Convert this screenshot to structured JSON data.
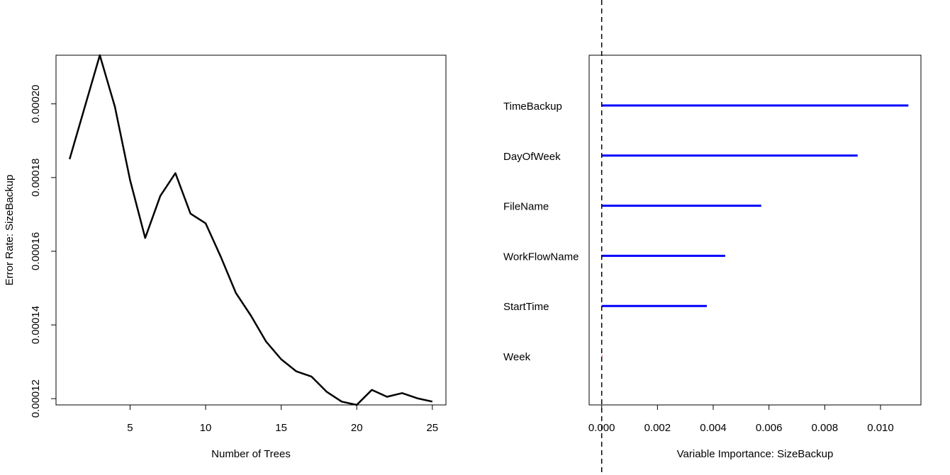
{
  "chart_data": [
    {
      "type": "line",
      "title": "",
      "xlabel": "Number of Trees",
      "ylabel": "Error Rate: SizeBackup",
      "xlim": [
        0.1,
        25.9
      ],
      "ylim": [
        0.0001183,
        0.0002132
      ],
      "x_ticks": [
        5,
        10,
        15,
        20,
        25
      ],
      "x_tick_labels": [
        "5",
        "10",
        "15",
        "20",
        "25"
      ],
      "y_ticks": [
        0.00012,
        0.00014,
        0.00016,
        0.00018,
        0.0002
      ],
      "y_tick_labels": [
        "0.00012",
        "0.00014",
        "0.00016",
        "0.00018",
        "0.00020"
      ],
      "line_color": "#000000",
      "series": [
        {
          "x": [
            1,
            2,
            3,
            4,
            5,
            6,
            7,
            8,
            9,
            10,
            11,
            12,
            13,
            14,
            15,
            16,
            17,
            18,
            19,
            20,
            21,
            22,
            23,
            24,
            25
          ],
          "values": [
            0.000185,
            0.0001991,
            0.0002132,
            0.0001992,
            0.0001793,
            0.0001636,
            0.000175,
            0.0001812,
            0.0001702,
            0.0001676,
            0.0001585,
            0.0001487,
            0.0001425,
            0.0001355,
            0.0001307,
            0.0001274,
            0.000126,
            0.0001219,
            0.0001192,
            0.0001183,
            0.0001224,
            0.0001205,
            0.0001215,
            0.0001201,
            0.0001192
          ]
        }
      ]
    },
    {
      "type": "bar",
      "orientation": "horizontal",
      "title": "",
      "xlabel": "Variable Importance: SizeBackup",
      "ylabel": "",
      "xlim": [
        -0.00045,
        0.01145
      ],
      "x_ticks": [
        0,
        0.002,
        0.004,
        0.006,
        0.008,
        0.01
      ],
      "x_tick_labels": [
        "0.000",
        "0.002",
        "0.004",
        "0.006",
        "0.008",
        "0.010"
      ],
      "reference_line": 0,
      "categories": [
        "TimeBackup",
        "DayOfWeek",
        "FileName",
        "WorkFlowName",
        "StartTime",
        "Week"
      ],
      "values": [
        0.011,
        0.00918,
        0.00572,
        0.00443,
        0.00377,
        2e-05
      ],
      "colors": [
        "#0000ff",
        "#0000ff",
        "#0000ff",
        "#0000ff",
        "#0000ff",
        "#ff0000"
      ]
    }
  ]
}
